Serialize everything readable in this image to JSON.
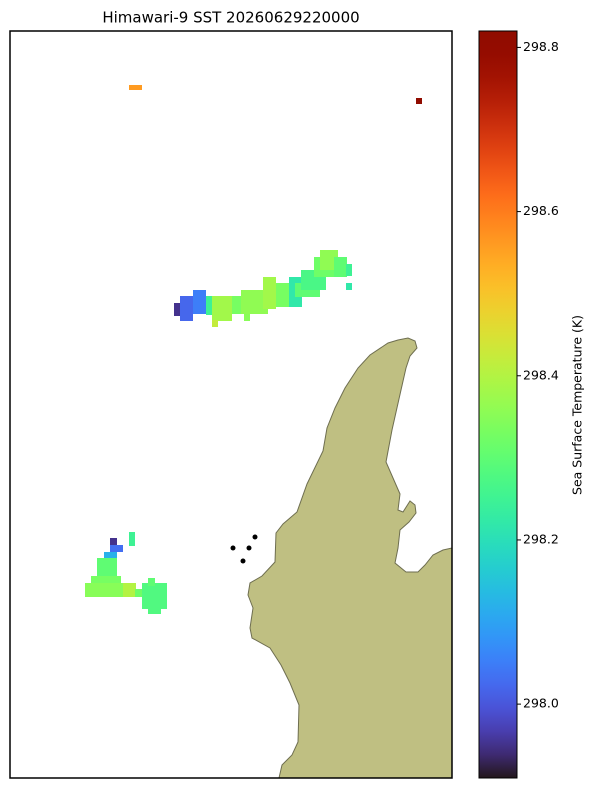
{
  "title": "Himawari-9 SST 20260629220000",
  "colorbar": {
    "label": "Sea Surface Temperature (K)",
    "clim": [
      297.91,
      298.82
    ],
    "ticks": [
      {
        "value": 298.0,
        "label": "298.0"
      },
      298.2,
      298.4,
      298.6,
      298.8
    ]
  },
  "cells": {
    "values": [
      298.56,
      298.82,
      297.95,
      298.02,
      298.05,
      298.25,
      298.38,
      298.33,
      298.36,
      298.38,
      298.33,
      298.22,
      298.3,
      298.27,
      298.32,
      298.36,
      298.3,
      298.25,
      298.22,
      298.42,
      298.35,
      297.95,
      298.03,
      298.12,
      298.25,
      298.3,
      298.33,
      298.35,
      298.4,
      298.32,
      298.28,
      298.3,
      298.28
    ]
  }
}
